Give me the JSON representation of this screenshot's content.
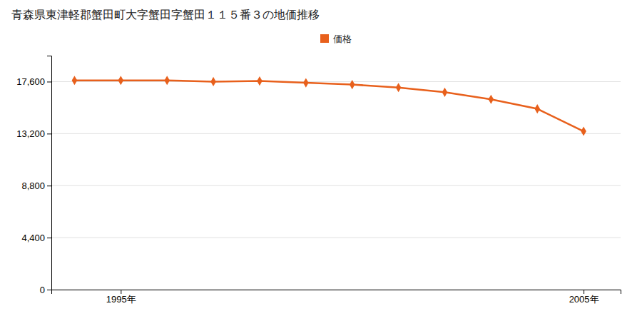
{
  "chart_data": {
    "type": "line",
    "title": "青森県東津軽郡蟹田町大字蟹田字蟹田１１５番３の地価推移",
    "x": [
      1994,
      1995,
      1996,
      1997,
      1998,
      1999,
      2000,
      2001,
      2002,
      2003,
      2004,
      2005
    ],
    "series": [
      {
        "name": "価格",
        "color": "#e8601c",
        "marker": "diamond",
        "line_style": "solid",
        "values": [
          17700,
          17700,
          17700,
          17600,
          17650,
          17500,
          17350,
          17100,
          16700,
          16100,
          15300,
          13400
        ]
      }
    ],
    "xlim": [
      1993.5,
      2005.8
    ],
    "xticks": [
      {
        "value": 1995,
        "label": "1995年"
      },
      {
        "value": 2005,
        "label": "2005年"
      }
    ],
    "ylim": [
      0,
      19800
    ],
    "yticks": [
      0,
      {
        "value": 4400,
        "label": "4,400"
      },
      {
        "value": 8800,
        "label": "8,800"
      },
      {
        "value": 13200,
        "label": "13,200"
      },
      {
        "value": 17600,
        "label": "17,600"
      }
    ],
    "grid": "y",
    "legend": "top"
  }
}
